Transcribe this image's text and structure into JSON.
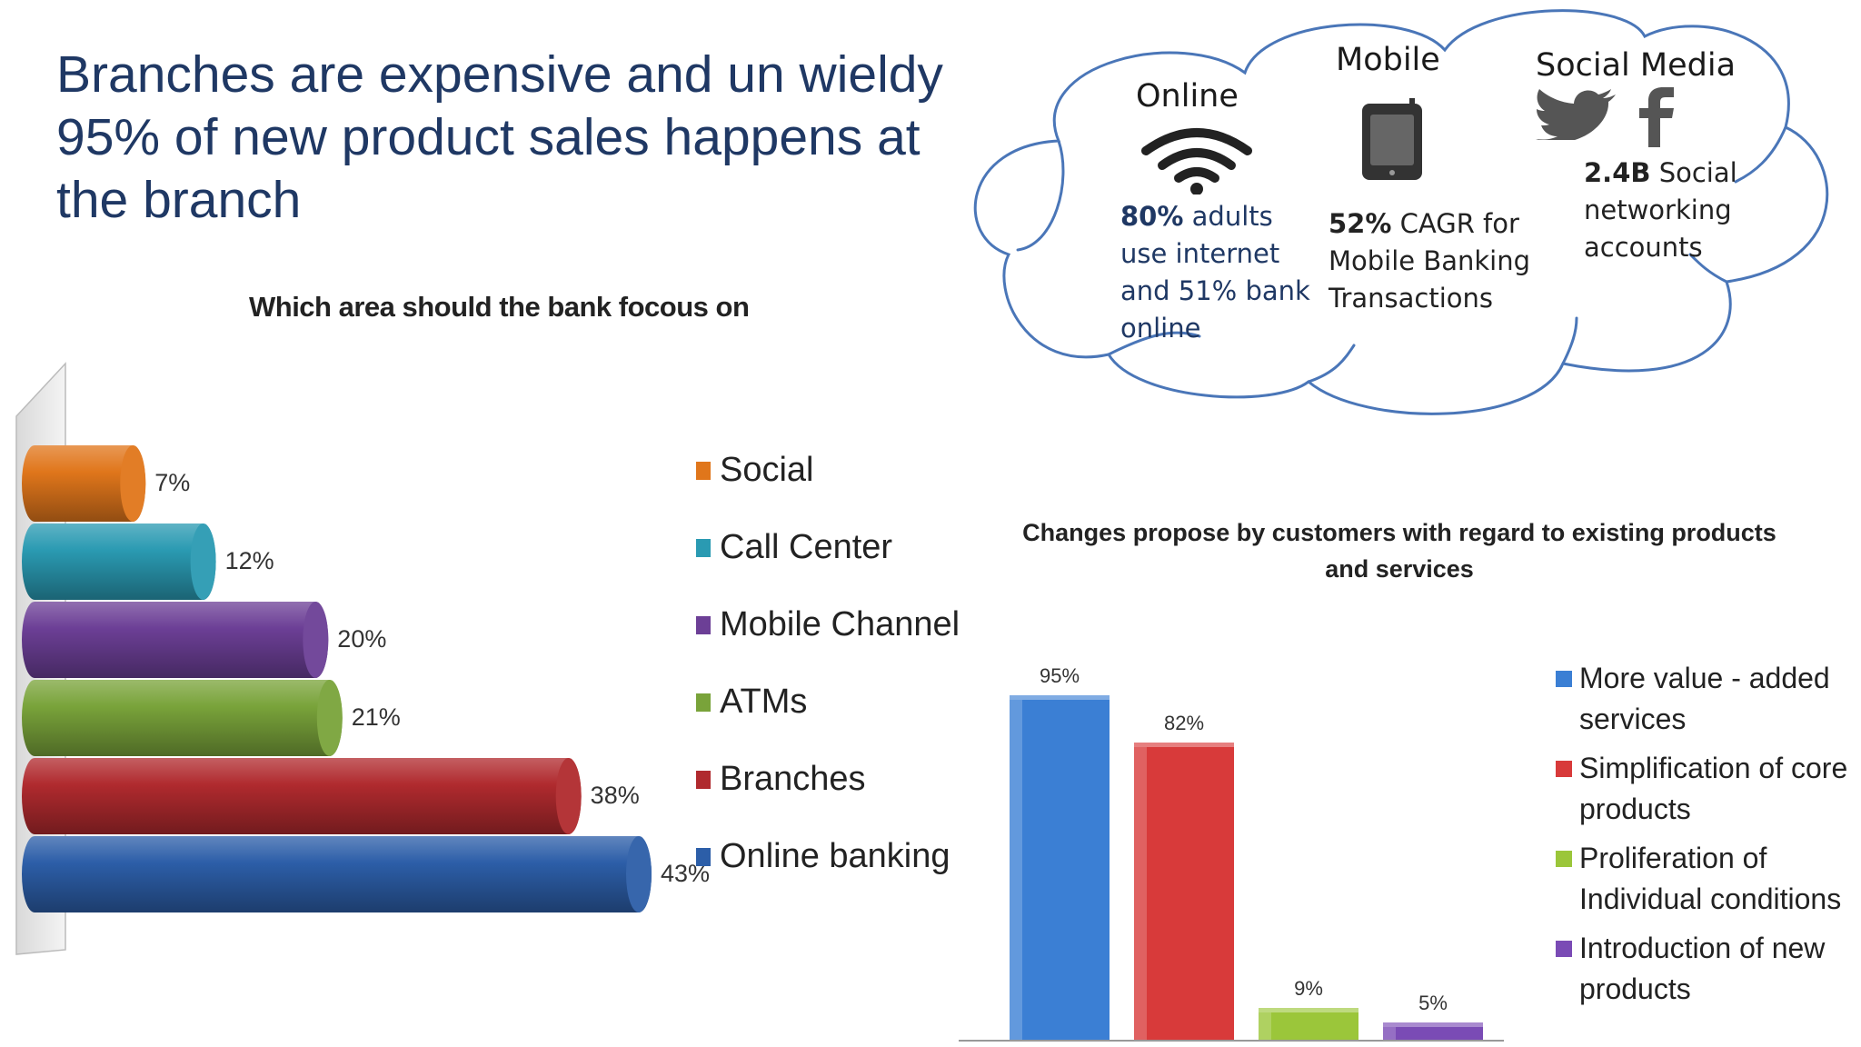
{
  "headline": {
    "line1": "Branches are expensive and un wieldy",
    "line2": "95% of new product sales happens at",
    "line3": "the branch"
  },
  "cloud": {
    "online": {
      "title": "Online",
      "icon": "wifi-icon",
      "bold": "80%",
      "text1": " adults",
      "line2": "use internet",
      "line3": "and 51% bank",
      "line4": "online"
    },
    "mobile": {
      "title": "Mobile",
      "icon": "mobile-phone-icon",
      "bold": "52%",
      "text1": " CAGR for",
      "line2": "Mobile Banking",
      "line3": "Transactions"
    },
    "social": {
      "title": "Social Media",
      "icons": [
        "twitter-bird-icon",
        "facebook-icon"
      ],
      "bold": "2.4B",
      "text1": " Social",
      "line2": "networking",
      "line3": "accounts"
    },
    "border_color": "#4a76b8"
  },
  "chart_data": [
    {
      "type": "bar",
      "orientation": "horizontal",
      "title": "Which area should the bank focous on",
      "categories": [
        "Social",
        "Call Center",
        "Mobile Channel",
        "ATMs",
        "Branches",
        "Online banking"
      ],
      "values": [
        7,
        12,
        20,
        21,
        38,
        43
      ],
      "value_labels": [
        "7%",
        "12%",
        "20%",
        "21%",
        "38%",
        "43%"
      ],
      "colors": [
        "#e0761b",
        "#2a9ab2",
        "#6c3f96",
        "#79a33a",
        "#b02a2e",
        "#2c5ea8"
      ],
      "legend": "right",
      "style": "3d-cylinder"
    },
    {
      "type": "bar",
      "title": "Changes propose by customers with regard to existing products and services",
      "categories": [
        "More value - added services",
        "Simplification of core products",
        "Proliferation of Individual conditions",
        "Introduction of new products"
      ],
      "legend_lines": [
        [
          "More value - added",
          "services"
        ],
        [
          "Simplification of core",
          "products"
        ],
        [
          "Proliferation of",
          "Individual conditions"
        ],
        [
          "Introduction of new",
          "products"
        ]
      ],
      "values": [
        95,
        82,
        9,
        5
      ],
      "value_labels": [
        "95%",
        "82%",
        "9%",
        "5%"
      ],
      "colors": [
        "#3b7fd4",
        "#d83a3a",
        "#9bc63a",
        "#7a4bb5"
      ],
      "ylim": [
        0,
        100
      ],
      "legend": "right"
    }
  ]
}
